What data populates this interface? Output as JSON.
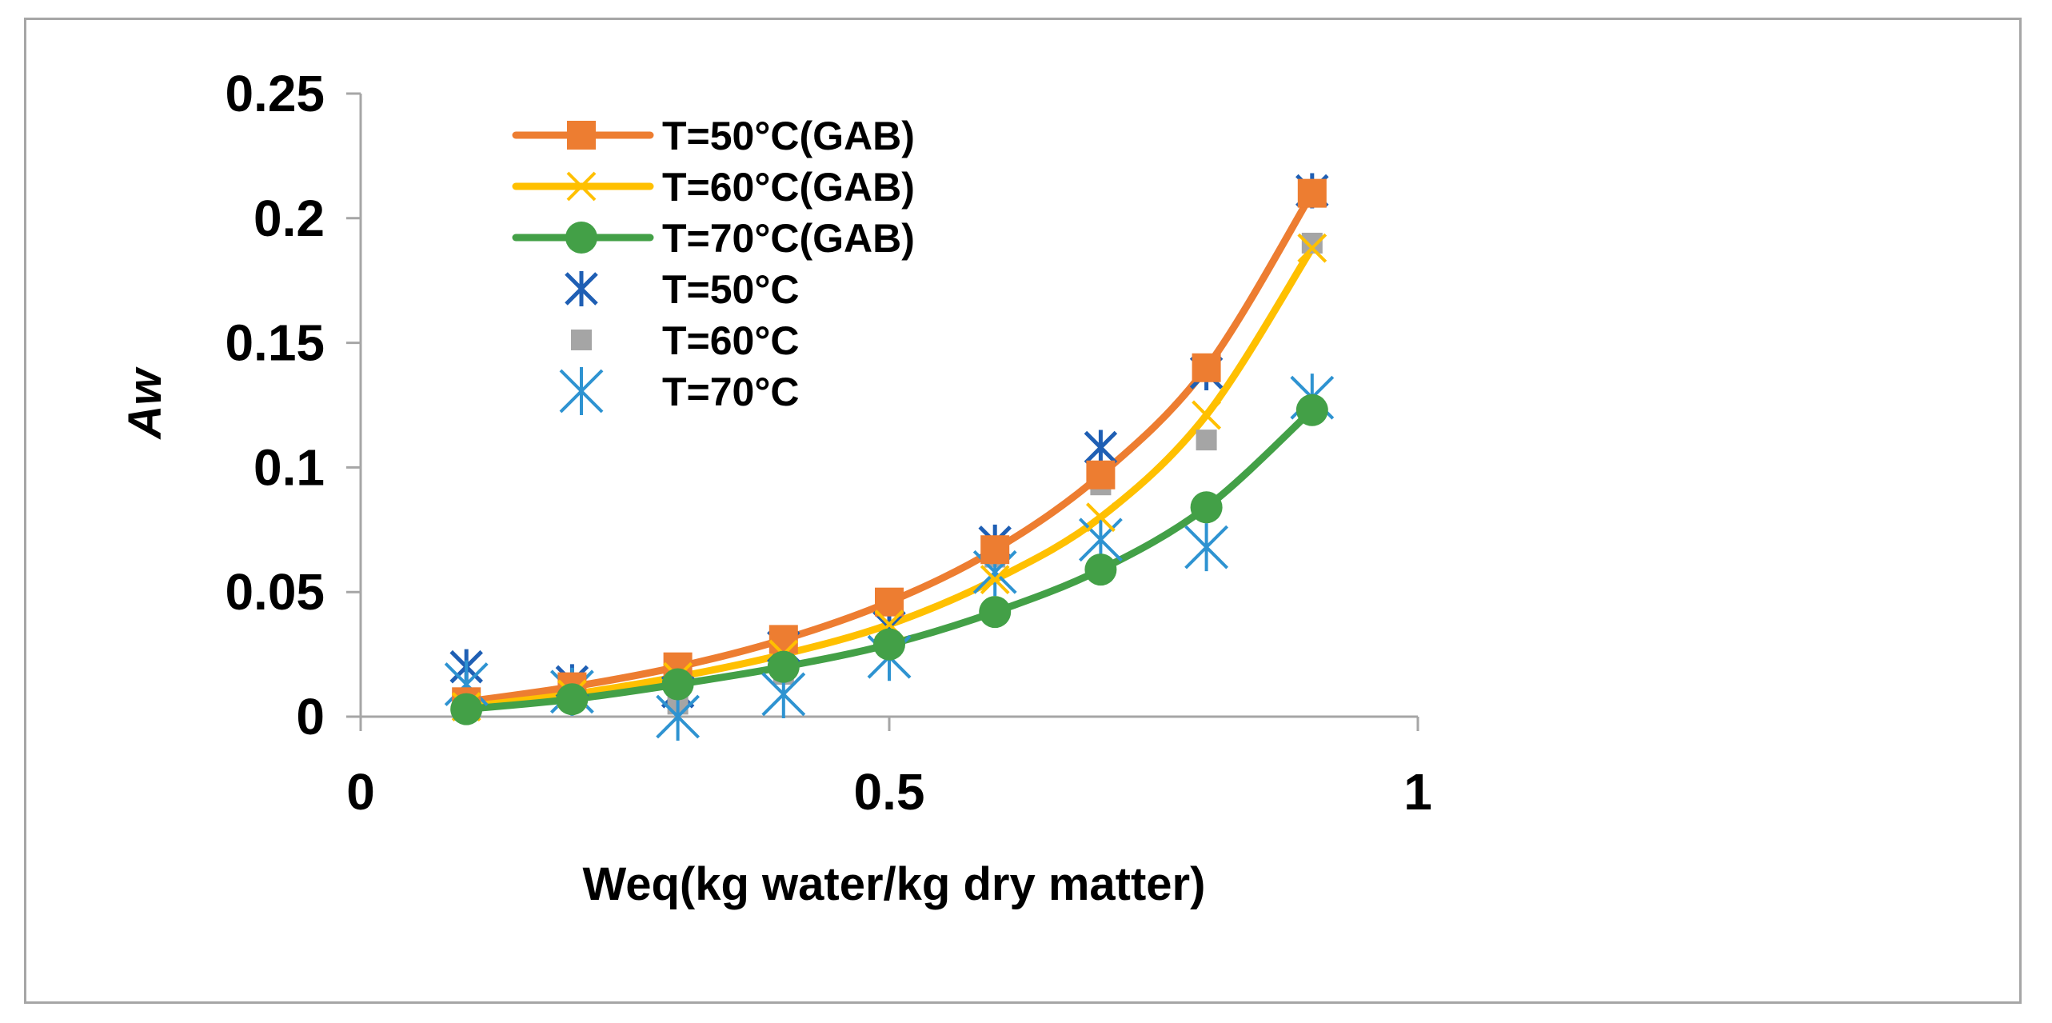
{
  "chart_data": {
    "type": "scatter",
    "title": "",
    "xlabel": "Weq(kg water/kg dry matter)",
    "ylabel": "Aw",
    "xlim": [
      0,
      1
    ],
    "ylim": [
      0,
      0.25
    ],
    "x_ticks": [
      "0",
      "0.5",
      "1"
    ],
    "y_ticks": [
      "0",
      "0.05",
      "0.1",
      "0.15",
      "0.2",
      "0.25"
    ],
    "grid": false,
    "legend_position": "top-left",
    "x": [
      0.1,
      0.2,
      0.3,
      0.4,
      0.5,
      0.6,
      0.7,
      0.8,
      0.9
    ],
    "series": [
      {
        "name": "T=50°C(GAB)",
        "kind": "line",
        "marker": "square",
        "color": "#ed7d31",
        "values": [
          0.006,
          0.012,
          0.02,
          0.031,
          0.046,
          0.067,
          0.097,
          0.14,
          0.21
        ]
      },
      {
        "name": "T=60°C(GAB)",
        "kind": "line",
        "marker": "x",
        "color": "#ffc000",
        "values": [
          0.004,
          0.009,
          0.016,
          0.025,
          0.037,
          0.055,
          0.08,
          0.121,
          0.188
        ]
      },
      {
        "name": "T=70°C(GAB)",
        "kind": "line",
        "marker": "circle",
        "color": "#43a047",
        "values": [
          0.003,
          0.007,
          0.013,
          0.02,
          0.029,
          0.042,
          0.059,
          0.084,
          0.123
        ]
      },
      {
        "name": "T=50°C",
        "kind": "points",
        "marker": "asterisk",
        "color": "#1f5fb4",
        "values": [
          0.02,
          0.014,
          0.01,
          0.028,
          0.036,
          0.07,
          0.108,
          0.138,
          0.211
        ]
      },
      {
        "name": "T=60°C",
        "kind": "points",
        "marker": "square",
        "color": "#a5a5a5",
        "values": [
          0.005,
          0.012,
          0.005,
          0.017,
          0.03,
          0.064,
          0.093,
          0.111,
          0.19
        ]
      },
      {
        "name": "T=70°C",
        "kind": "points",
        "marker": "star",
        "color": "#2e93d1",
        "values": [
          0.013,
          0.01,
          0.0,
          0.009,
          0.024,
          0.058,
          0.071,
          0.068,
          0.128
        ]
      }
    ]
  }
}
